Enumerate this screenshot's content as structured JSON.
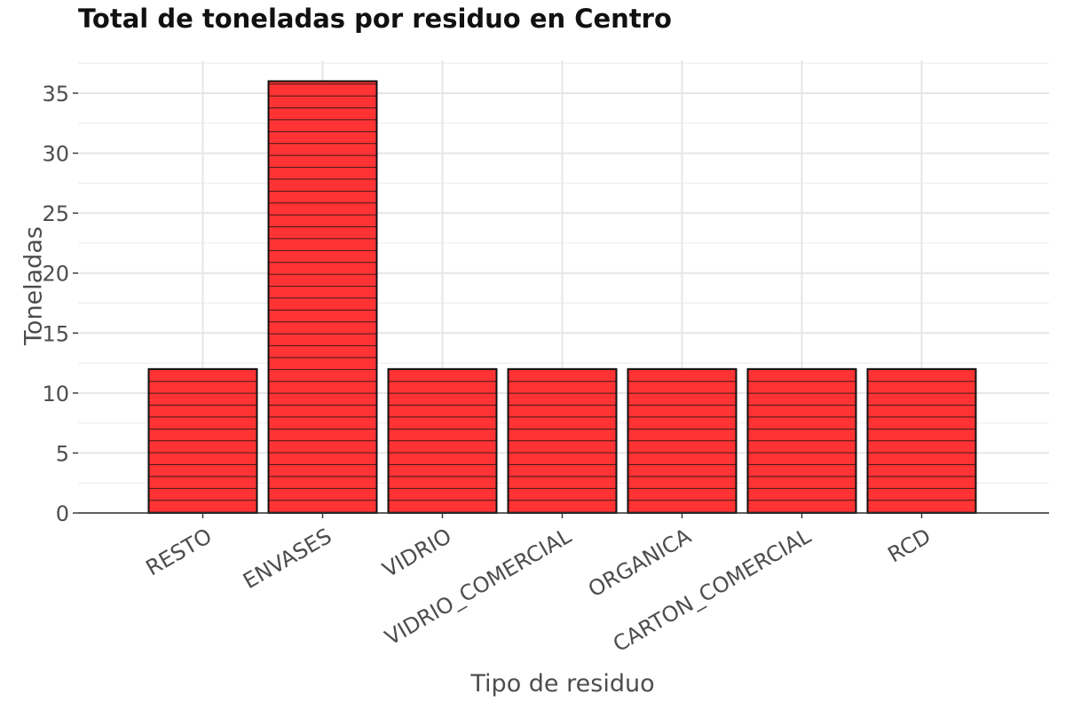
{
  "chart_data": {
    "type": "bar",
    "title": "Total de toneladas por residuo en Centro",
    "xlabel": "Tipo de residuo",
    "ylabel": "Toneladas",
    "categories": [
      "RESTO",
      "ENVASES",
      "VIDRIO",
      "VIDRIO_COMERCIAL",
      "ORGANICA",
      "CARTON_COMERCIAL",
      "RCD"
    ],
    "values": [
      12,
      36,
      12,
      12,
      12,
      12,
      12
    ],
    "y_ticks": [
      "0",
      "5",
      "10",
      "15",
      "20",
      "25",
      "30",
      "35"
    ],
    "ylim": [
      0,
      37.5
    ],
    "grid": true,
    "bar_pattern": "horizontal-stripes",
    "colors": {
      "bar_fill": "#ff3333",
      "bar_stroke": "#111111",
      "grid": "#ebebeb",
      "axis": "#333333",
      "text": "#4d4d4d"
    }
  }
}
